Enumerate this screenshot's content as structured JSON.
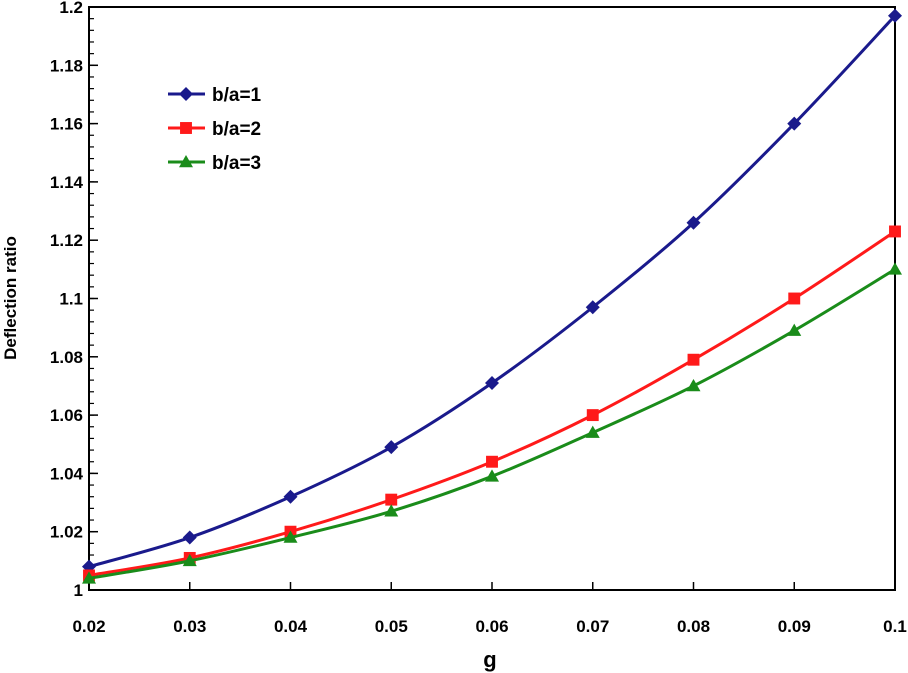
{
  "chart_data": {
    "type": "line",
    "xlabel": "g",
    "ylabel": "Deflection ratio",
    "xlim": [
      0.02,
      0.1
    ],
    "ylim": [
      1.0,
      1.2
    ],
    "x_ticks": [
      "0.02",
      "0.03",
      "0.04",
      "0.05",
      "0.06",
      "0.07",
      "0.08",
      "0.09",
      "0.1"
    ],
    "y_ticks": [
      "1",
      "1.02",
      "1.04",
      "1.06",
      "1.08",
      "1.1",
      "1.12",
      "1.14",
      "1.16",
      "1.18",
      "1.2"
    ],
    "x": [
      0.02,
      0.03,
      0.04,
      0.05,
      0.06,
      0.07,
      0.08,
      0.09,
      0.1
    ],
    "grid": false,
    "legend_position": "top-left",
    "series": [
      {
        "name": "b/a=1",
        "color": "#1a1a8c",
        "marker": "diamond",
        "values": [
          1.008,
          1.018,
          1.032,
          1.049,
          1.071,
          1.097,
          1.126,
          1.16,
          1.197
        ]
      },
      {
        "name": "b/a=2",
        "color": "#ff1a1a",
        "marker": "square",
        "values": [
          1.005,
          1.011,
          1.02,
          1.031,
          1.044,
          1.06,
          1.079,
          1.1,
          1.123
        ]
      },
      {
        "name": "b/a=3",
        "color": "#1a8c1a",
        "marker": "triangle",
        "values": [
          1.004,
          1.01,
          1.018,
          1.027,
          1.039,
          1.054,
          1.07,
          1.089,
          1.11
        ]
      }
    ]
  }
}
